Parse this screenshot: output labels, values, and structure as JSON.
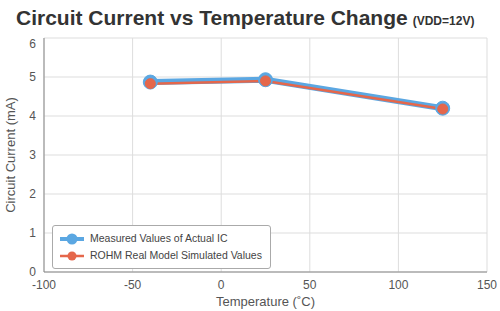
{
  "chart_data": {
    "type": "line",
    "title": "Circuit Current vs Temperature Change",
    "subtitle": "(VDD=12V)",
    "x_label": "Temperature (˚C)",
    "y_label": "Circuit Current (mA)",
    "x": [
      -40,
      25,
      125
    ],
    "series": [
      {
        "name": "Measured Values of Actual IC",
        "color": "#5ba7e2",
        "values": [
          4.87,
          4.93,
          4.2
        ],
        "marker": "circle"
      },
      {
        "name": "ROHM Real Model Simulated Values",
        "color": "#e5674b",
        "values": [
          4.83,
          4.9,
          4.18
        ],
        "marker": "circle"
      }
    ],
    "xlim": [
      -100,
      150
    ],
    "xticks": [
      -100,
      -50,
      0,
      50,
      100,
      150
    ],
    "ylim": [
      0,
      6
    ],
    "yticks": [
      0,
      1,
      2,
      3,
      4,
      5,
      6
    ],
    "grid": true,
    "legend": "lower left"
  }
}
